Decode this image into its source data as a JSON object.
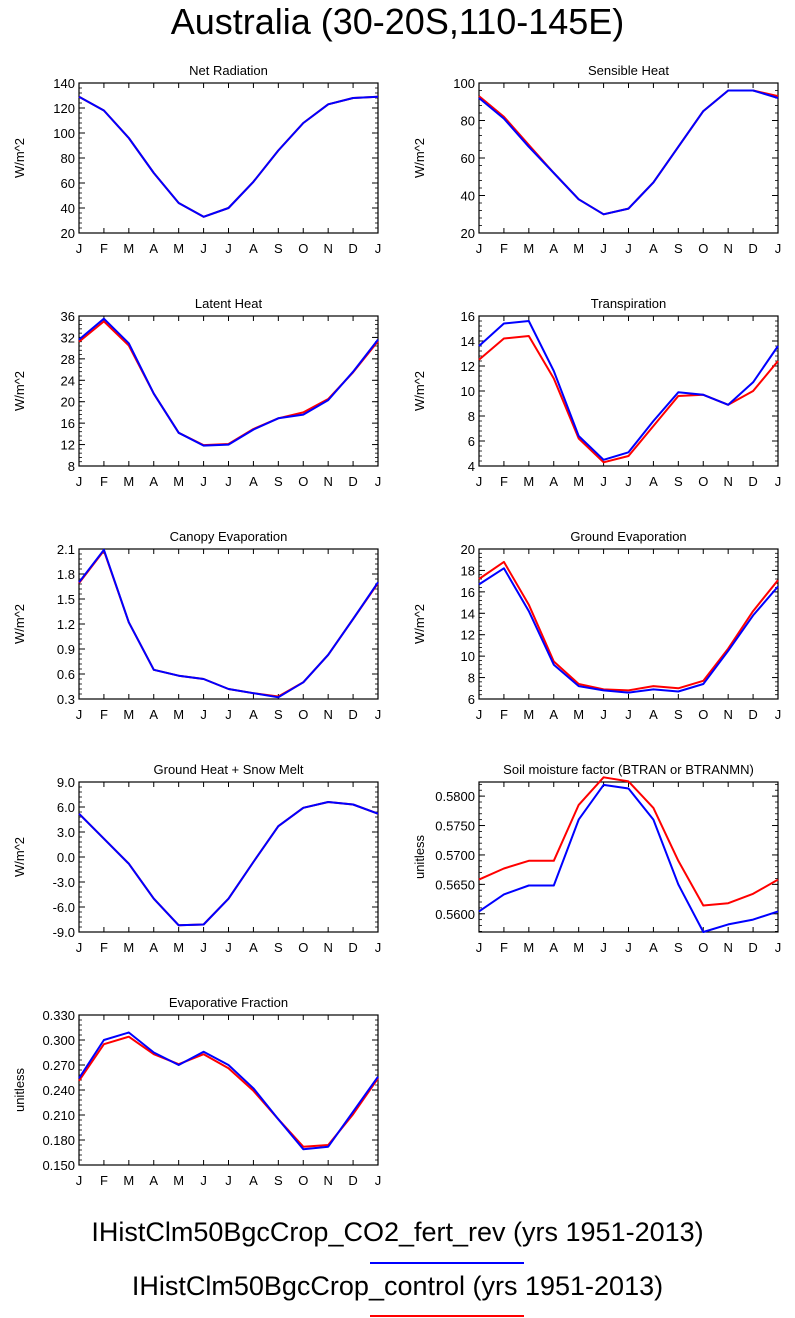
{
  "title": "Australia (30-20S,110-145E)",
  "months": [
    "J",
    "F",
    "M",
    "A",
    "M",
    "J",
    "J",
    "A",
    "S",
    "O",
    "N",
    "D",
    "J"
  ],
  "legend": [
    {
      "label": "IHistClm50BgcCrop_CO2_fert_rev (yrs 1951-2013)",
      "color": "#0000ff"
    },
    {
      "label": "IHistClm50BgcCrop_control (yrs 1951-2013)",
      "color": "#ff0000"
    }
  ],
  "chart_data": [
    {
      "type": "line",
      "title": "Net Radiation",
      "ylabel": "W/m^2",
      "ylim": [
        20,
        140
      ],
      "yticks": [
        "20",
        "40",
        "60",
        "80",
        "100",
        "120",
        "140"
      ],
      "series": [
        {
          "name": "IHistClm50BgcCrop_control",
          "color": "#ff0000",
          "values": [
            129,
            118,
            96,
            68,
            44,
            33,
            40,
            61,
            86,
            108,
            123,
            128,
            129
          ]
        },
        {
          "name": "IHistClm50BgcCrop_CO2_fert_rev",
          "color": "#0000ff",
          "values": [
            129,
            118,
            96,
            68,
            44,
            33,
            40,
            61,
            86,
            108,
            123,
            128,
            129
          ]
        }
      ]
    },
    {
      "type": "line",
      "title": "Sensible Heat",
      "ylabel": "W/m^2",
      "ylim": [
        20,
        100
      ],
      "yticks": [
        "20",
        "40",
        "60",
        "80",
        "100"
      ],
      "series": [
        {
          "name": "IHistClm50BgcCrop_control",
          "color": "#ff0000",
          "values": [
            93,
            82,
            67,
            52,
            38,
            30,
            33,
            47,
            66,
            85,
            96,
            96,
            93
          ]
        },
        {
          "name": "IHistClm50BgcCrop_CO2_fert_rev",
          "color": "#0000ff",
          "values": [
            92,
            81,
            66,
            52,
            38,
            30,
            33,
            47,
            66,
            85,
            96,
            96,
            92
          ]
        }
      ]
    },
    {
      "type": "line",
      "title": "Latent Heat",
      "ylabel": "W/m^2",
      "ylim": [
        8,
        36
      ],
      "yticks": [
        "8",
        "12",
        "16",
        "20",
        "24",
        "28",
        "32",
        "36"
      ],
      "series": [
        {
          "name": "IHistClm50BgcCrop_control",
          "color": "#ff0000",
          "values": [
            31.2,
            35,
            30.5,
            21.5,
            14.2,
            11.9,
            12.1,
            14.9,
            16.9,
            18,
            20.5,
            25.5,
            31.3
          ]
        },
        {
          "name": "IHistClm50BgcCrop_CO2_fert_rev",
          "color": "#0000ff",
          "values": [
            31.6,
            35.5,
            30.9,
            21.5,
            14.2,
            11.8,
            12,
            14.8,
            16.9,
            17.6,
            20.3,
            25.6,
            31.6
          ]
        }
      ]
    },
    {
      "type": "line",
      "title": "Transpiration",
      "ylabel": "W/m^2",
      "ylim": [
        4,
        16
      ],
      "yticks": [
        "4",
        "6",
        "8",
        "10",
        "12",
        "14",
        "16"
      ],
      "series": [
        {
          "name": "IHistClm50BgcCrop_control",
          "color": "#ff0000",
          "values": [
            12.5,
            14.2,
            14.4,
            11,
            6.2,
            4.3,
            4.8,
            7.2,
            9.6,
            9.7,
            8.9,
            10,
            12.4
          ]
        },
        {
          "name": "IHistClm50BgcCrop_CO2_fert_rev",
          "color": "#0000ff",
          "values": [
            13.6,
            15.4,
            15.6,
            11.6,
            6.4,
            4.5,
            5.1,
            7.6,
            9.9,
            9.7,
            8.9,
            10.7,
            13.6
          ]
        }
      ]
    },
    {
      "type": "line",
      "title": "Canopy Evaporation",
      "ylabel": "W/m^2",
      "ylim": [
        0.3,
        2.1
      ],
      "yticks": [
        "0.3",
        "0.6",
        "0.9",
        "1.2",
        "1.5",
        "1.8",
        "2.1"
      ],
      "series": [
        {
          "name": "IHistClm50BgcCrop_control",
          "color": "#ff0000",
          "values": [
            1.69,
            2.08,
            1.22,
            0.65,
            0.58,
            0.54,
            0.42,
            0.37,
            0.33,
            0.5,
            0.83,
            1.26,
            1.69
          ]
        },
        {
          "name": "IHistClm50BgcCrop_CO2_fert_rev",
          "color": "#0000ff",
          "values": [
            1.7,
            2.09,
            1.22,
            0.65,
            0.58,
            0.54,
            0.42,
            0.37,
            0.32,
            0.5,
            0.83,
            1.26,
            1.7
          ]
        }
      ]
    },
    {
      "type": "line",
      "title": "Ground Evaporation",
      "ylabel": "W/m^2",
      "ylim": [
        6,
        20
      ],
      "yticks": [
        "6",
        "8",
        "10",
        "12",
        "14",
        "16",
        "18",
        "20"
      ],
      "series": [
        {
          "name": "IHistClm50BgcCrop_control",
          "color": "#ff0000",
          "values": [
            17.2,
            18.8,
            14.8,
            9.5,
            7.4,
            6.9,
            6.8,
            7.2,
            7,
            7.7,
            10.7,
            14.2,
            17.1
          ]
        },
        {
          "name": "IHistClm50BgcCrop_CO2_fert_rev",
          "color": "#0000ff",
          "values": [
            16.7,
            18.2,
            14.2,
            9.2,
            7.2,
            6.8,
            6.6,
            6.9,
            6.7,
            7.4,
            10.5,
            13.8,
            16.5
          ]
        }
      ]
    },
    {
      "type": "line",
      "title": "Ground Heat + Snow Melt",
      "ylabel": "W/m^2",
      "ylim": [
        -9,
        9
      ],
      "yticks": [
        "-9.0",
        "-6.0",
        "-3.0",
        "0.0",
        "3.0",
        "6.0",
        "9.0"
      ],
      "series": [
        {
          "name": "IHistClm50BgcCrop_control",
          "color": "#ff0000",
          "values": [
            5.2,
            2.2,
            -0.8,
            -5,
            -8.2,
            -8.1,
            -5,
            -0.6,
            3.7,
            5.9,
            6.6,
            6.3,
            5.2
          ]
        },
        {
          "name": "IHistClm50BgcCrop_CO2_fert_rev",
          "color": "#0000ff",
          "values": [
            5.2,
            2.2,
            -0.8,
            -5,
            -8.2,
            -8.1,
            -5,
            -0.6,
            3.7,
            5.9,
            6.6,
            6.3,
            5.2
          ]
        }
      ]
    },
    {
      "type": "line",
      "title": "Soil moisture factor (BTRAN or BTRANMN)",
      "ylabel": "unitless",
      "ylim": [
        0.5569,
        0.5824
      ],
      "yticks": [
        "0.5600",
        "0.5650",
        "0.5700",
        "0.5750",
        "0.5800"
      ],
      "series": [
        {
          "name": "IHistClm50BgcCrop_control",
          "color": "#ff0000",
          "values": [
            0.5658,
            0.5677,
            0.569,
            0.569,
            0.5785,
            0.5832,
            0.5825,
            0.578,
            0.569,
            0.5614,
            0.5618,
            0.5634,
            0.5658
          ]
        },
        {
          "name": "IHistClm50BgcCrop_CO2_fert_rev",
          "color": "#0000ff",
          "values": [
            0.5604,
            0.5633,
            0.5648,
            0.5648,
            0.576,
            0.5819,
            0.5813,
            0.576,
            0.565,
            0.5569,
            0.5582,
            0.559,
            0.5604
          ]
        }
      ]
    },
    {
      "type": "line",
      "title": "Evaporative Fraction",
      "ylabel": "unitless",
      "ylim": [
        0.15,
        0.33
      ],
      "yticks": [
        "0.150",
        "0.180",
        "0.210",
        "0.240",
        "0.270",
        "0.300",
        "0.330"
      ],
      "series": [
        {
          "name": "IHistClm50BgcCrop_control",
          "color": "#ff0000",
          "values": [
            0.251,
            0.295,
            0.304,
            0.283,
            0.271,
            0.283,
            0.266,
            0.239,
            0.205,
            0.172,
            0.174,
            0.211,
            0.254
          ]
        },
        {
          "name": "IHistClm50BgcCrop_CO2_fert_rev",
          "color": "#0000ff",
          "values": [
            0.254,
            0.3,
            0.309,
            0.285,
            0.27,
            0.286,
            0.27,
            0.242,
            0.205,
            0.169,
            0.172,
            0.214,
            0.256
          ]
        }
      ]
    }
  ]
}
